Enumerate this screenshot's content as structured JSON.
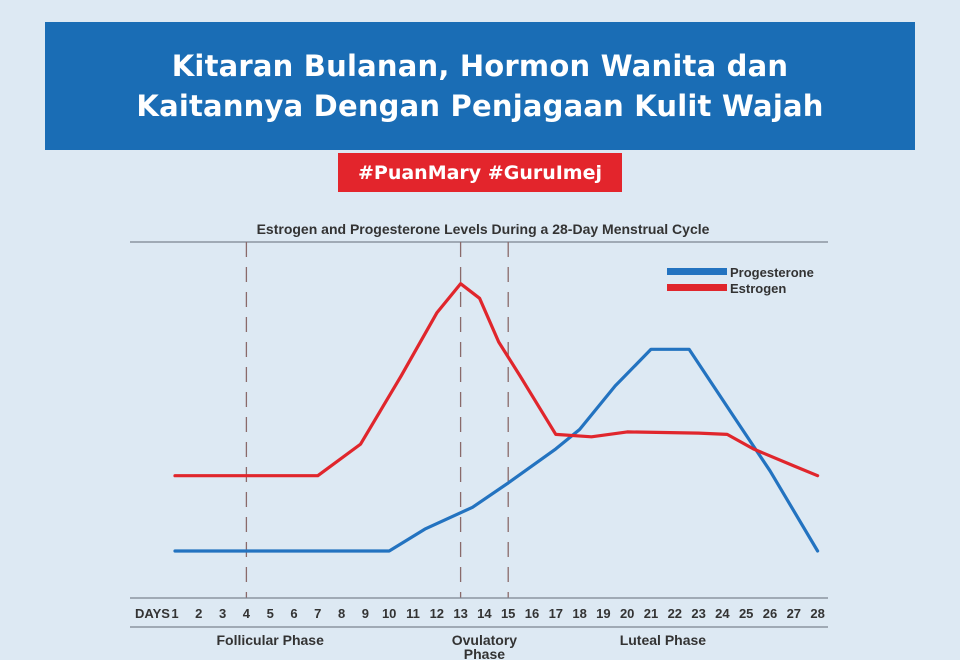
{
  "banner": {
    "line1": "Kitaran Bulanan, Hormon Wanita dan",
    "line2": "Kaitannya Dengan Penjagaan Kulit Wajah"
  },
  "hashtags": "#PuanMary #GuruImej",
  "colors": {
    "background": "#dde9f3",
    "banner": "#1a6db5",
    "tag": "#e3252c",
    "progesterone": "#2373c0",
    "estrogen": "#e0262c"
  },
  "chart_data": {
    "type": "line",
    "title": "Estrogen and Progesterone Levels During a 28-Day Menstrual Cycle",
    "x_label_prefix": "DAYS",
    "x": [
      1,
      2,
      3,
      4,
      5,
      6,
      7,
      8,
      9,
      10,
      11,
      12,
      13,
      14,
      15,
      16,
      17,
      18,
      19,
      20,
      21,
      22,
      23,
      24,
      25,
      26,
      27,
      28
    ],
    "xlim": [
      1,
      28
    ],
    "ylim": [
      0,
      100
    ],
    "legend_position": "top-right",
    "series": [
      {
        "name": "Progesterone",
        "color": "#2373c0",
        "values": [
          [
            1,
            0
          ],
          [
            10,
            0
          ],
          [
            11.5,
            9
          ],
          [
            13.5,
            18
          ],
          [
            15,
            28
          ],
          [
            17,
            42
          ],
          [
            18,
            50
          ],
          [
            19.5,
            68
          ],
          [
            21,
            83
          ],
          [
            21.8,
            83
          ],
          [
            22.6,
            83
          ],
          [
            24.5,
            55
          ],
          [
            26,
            33
          ],
          [
            28,
            0
          ]
        ]
      },
      {
        "name": "Estrogen",
        "color": "#e0262c",
        "values": [
          [
            1,
            31
          ],
          [
            4,
            31
          ],
          [
            7,
            31
          ],
          [
            8.8,
            44
          ],
          [
            10.5,
            72
          ],
          [
            12,
            98
          ],
          [
            13,
            110
          ],
          [
            13.8,
            104
          ],
          [
            14.6,
            86
          ],
          [
            15.5,
            72
          ],
          [
            17,
            48
          ],
          [
            18.5,
            47
          ],
          [
            20,
            49
          ],
          [
            23,
            48.5
          ],
          [
            24.2,
            48
          ],
          [
            25.3,
            42
          ],
          [
            27,
            35
          ],
          [
            28,
            31
          ]
        ]
      }
    ],
    "phases": [
      {
        "label": "Follicular Phase",
        "center": 5
      },
      {
        "label": "Ovulatory",
        "label2": "Phase",
        "center": 14
      },
      {
        "label": "Luteal Phase",
        "center": 21.5
      }
    ],
    "phase_boundaries": [
      4,
      13,
      15
    ]
  }
}
